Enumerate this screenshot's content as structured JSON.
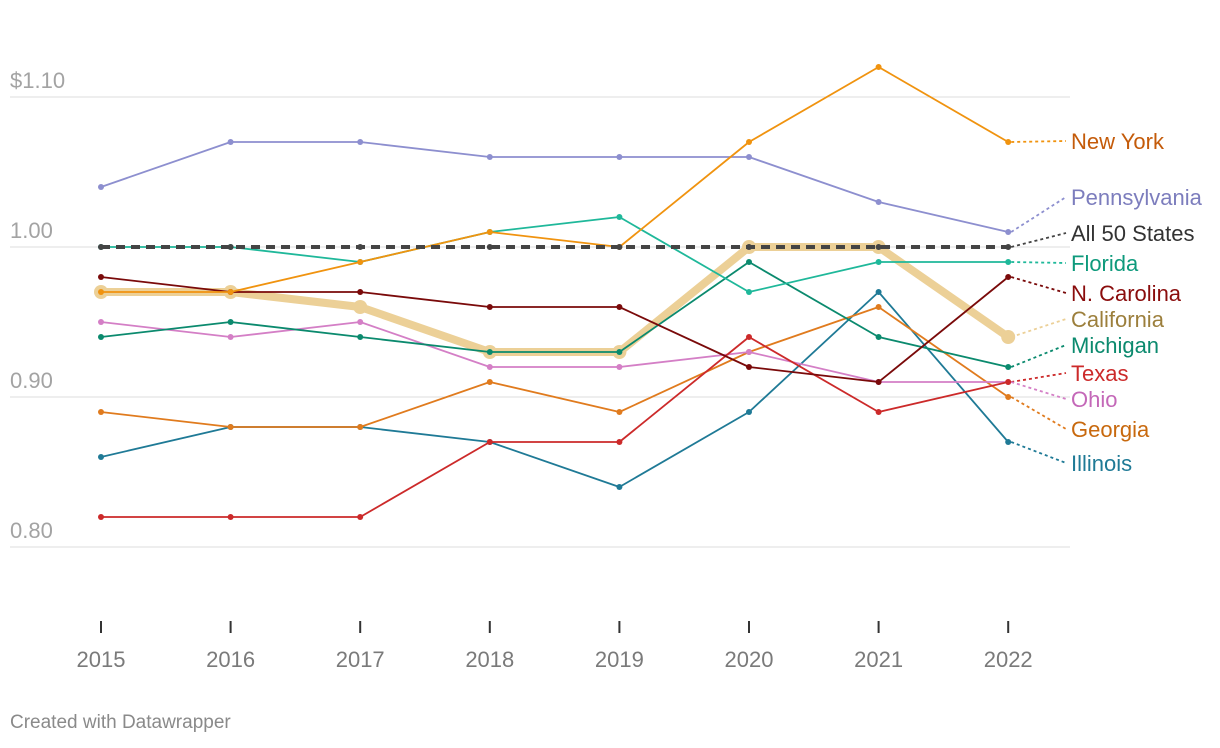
{
  "chart_data": {
    "type": "line",
    "title": "",
    "xlabel": "",
    "ylabel": "",
    "x": [
      "2015",
      "2016",
      "2017",
      "2018",
      "2019",
      "2020",
      "2021",
      "2022"
    ],
    "ylim": [
      0.8,
      1.1
    ],
    "y_ticks": [
      {
        "value": 1.1,
        "label": "$1.10"
      },
      {
        "value": 1.0,
        "label": "1.00"
      },
      {
        "value": 0.9,
        "label": "0.90"
      },
      {
        "value": 0.8,
        "label": "0.80"
      }
    ],
    "legend": "direct labels at right",
    "series": [
      {
        "name": "Illinois",
        "color": "#1f7a96",
        "values": [
          0.86,
          0.88,
          0.88,
          0.87,
          0.84,
          0.89,
          0.97,
          0.87
        ]
      },
      {
        "name": "Georgia",
        "color": "#e07b1e",
        "values": [
          0.89,
          0.88,
          0.88,
          0.91,
          0.89,
          0.93,
          0.96,
          0.9
        ]
      },
      {
        "name": "Ohio",
        "color": "#d47fc6",
        "values": [
          0.95,
          0.94,
          0.95,
          0.92,
          0.92,
          0.93,
          0.91,
          0.91
        ]
      },
      {
        "name": "Texas",
        "color": "#cc2a2a",
        "values": [
          0.82,
          0.82,
          0.82,
          0.87,
          0.87,
          0.94,
          0.89,
          0.91
        ]
      },
      {
        "name": "Michigan",
        "color": "#0b8a6e",
        "values": [
          0.94,
          0.95,
          0.94,
          0.93,
          0.93,
          0.99,
          0.94,
          0.92
        ]
      },
      {
        "name": "N. Carolina",
        "color": "#7a0a0a",
        "values": [
          0.98,
          0.97,
          0.97,
          0.96,
          0.96,
          0.92,
          0.91,
          0.98
        ]
      },
      {
        "name": "Florida",
        "color": "#1fb89a",
        "values": [
          1.0,
          1.0,
          0.99,
          1.01,
          1.02,
          0.97,
          0.99,
          0.99
        ]
      },
      {
        "name": "Pennsylvania",
        "color": "#8d8fcf",
        "values": [
          1.04,
          1.07,
          1.07,
          1.06,
          1.06,
          1.06,
          1.03,
          1.01
        ]
      },
      {
        "name": "New York",
        "color": "#f0930f",
        "values": [
          0.97,
          0.97,
          0.99,
          1.01,
          1.0,
          1.07,
          1.12,
          1.07
        ]
      },
      {
        "name": "All 50 States",
        "color": "#444444",
        "values": [
          1.0,
          1.0,
          1.0,
          1.0,
          1.0,
          1.0,
          1.0,
          1.0
        ],
        "style": "dashed"
      },
      {
        "name": "California",
        "color": "#ecd097",
        "values": [
          0.97,
          0.97,
          0.96,
          0.93,
          0.93,
          1.0,
          1.0,
          0.94
        ],
        "style": "highlight"
      }
    ],
    "labels": [
      {
        "name": "New York",
        "text": "New York",
        "color": "#c45b0a"
      },
      {
        "name": "Pennsylvania",
        "text": "Pennsylvania",
        "color": "#7c7dbd"
      },
      {
        "name": "All 50 States",
        "text": "All 50 States",
        "color": "#333333"
      },
      {
        "name": "Florida",
        "text": "Florida",
        "color": "#0e9a7c"
      },
      {
        "name": "N. Carolina",
        "text": "N. Carolina",
        "color": "#8a0c0c"
      },
      {
        "name": "California",
        "text": "California",
        "color": "#9c7f3c"
      },
      {
        "name": "Michigan",
        "text": "Michigan",
        "color": "#0b8a6e"
      },
      {
        "name": "Texas",
        "text": "Texas",
        "color": "#cc2a2a"
      },
      {
        "name": "Ohio",
        "text": "Ohio",
        "color": "#c468b8"
      },
      {
        "name": "Georgia",
        "text": "Georgia",
        "color": "#c8690e"
      },
      {
        "name": "Illinois",
        "text": "Illinois",
        "color": "#1f7a96"
      }
    ]
  },
  "footer": {
    "credit": "Created with Datawrapper"
  }
}
